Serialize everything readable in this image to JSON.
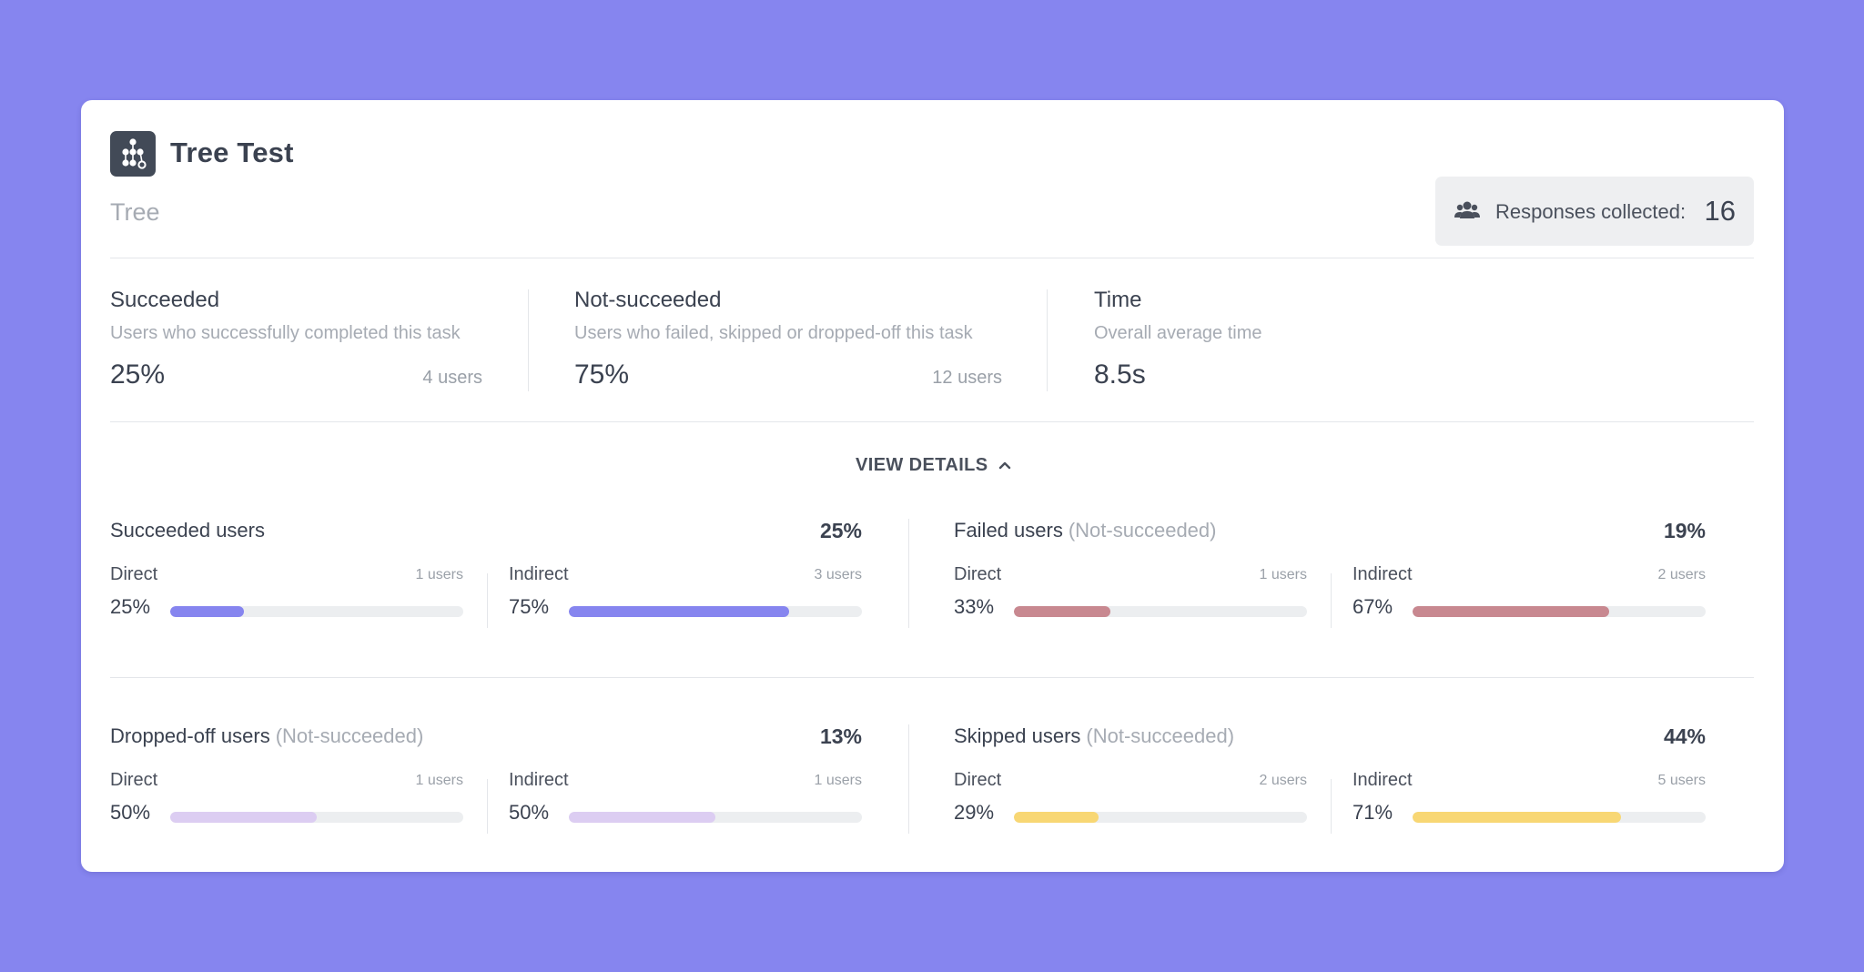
{
  "header": {
    "title": "Tree Test",
    "subtitle": "Tree",
    "logo_icon": "tree-icon",
    "responses_label": "Responses collected:",
    "responses_count": "16",
    "responses_icon": "users-icon"
  },
  "stats": [
    {
      "title": "Succeeded",
      "description": "Users who successfully completed this task",
      "value": "25%",
      "users": "4 users"
    },
    {
      "title": "Not-succeeded",
      "description": "Users who failed, skipped or dropped-off this task",
      "value": "75%",
      "users": "12 users"
    },
    {
      "title": "Time",
      "description": "Overall average time",
      "value": "8.5s"
    }
  ],
  "view_details": {
    "label": "VIEW DETAILS",
    "icon": "chevron-up-icon"
  },
  "groups": [
    {
      "title": "Succeeded users",
      "note": "",
      "percent": "25%",
      "color": "#8685ef",
      "direct": {
        "label": "Direct",
        "users": "1 users",
        "percent": "25%",
        "fraction": 0.25
      },
      "indirect": {
        "label": "Indirect",
        "users": "3 users",
        "percent": "75%",
        "fraction": 0.75
      }
    },
    {
      "title": "Failed users",
      "note": "(Not-succeeded)",
      "percent": "19%",
      "color": "#c88890",
      "direct": {
        "label": "Direct",
        "users": "1 users",
        "percent": "33%",
        "fraction": 0.33
      },
      "indirect": {
        "label": "Indirect",
        "users": "2 users",
        "percent": "67%",
        "fraction": 0.67
      }
    },
    {
      "title": "Dropped-off users",
      "note": "(Not-succeeded)",
      "percent": "13%",
      "color": "#dccdf2",
      "direct": {
        "label": "Direct",
        "users": "1 users",
        "percent": "50%",
        "fraction": 0.5
      },
      "indirect": {
        "label": "Indirect",
        "users": "1 users",
        "percent": "50%",
        "fraction": 0.5
      }
    },
    {
      "title": "Skipped users",
      "note": "(Not-succeeded)",
      "percent": "44%",
      "color": "#f8d774",
      "direct": {
        "label": "Direct",
        "users": "2 users",
        "percent": "29%",
        "fraction": 0.29
      },
      "indirect": {
        "label": "Indirect",
        "users": "5 users",
        "percent": "71%",
        "fraction": 0.71
      }
    }
  ]
}
